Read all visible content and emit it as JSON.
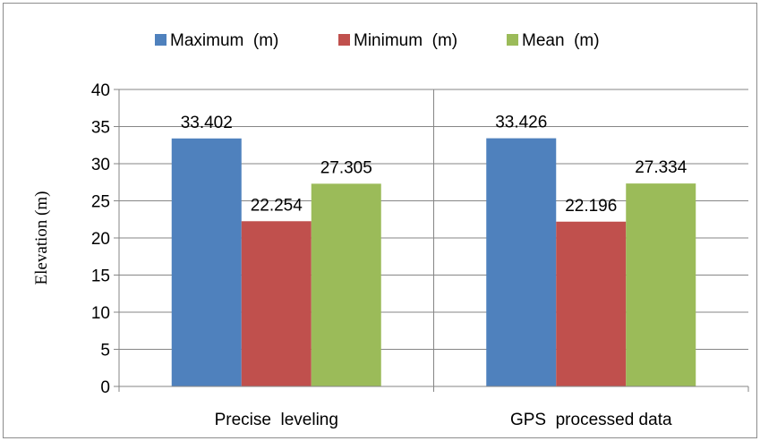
{
  "chart_data": {
    "type": "bar",
    "categories": [
      "Precise  leveling",
      "GPS  processed data"
    ],
    "series": [
      {
        "name": "Maximum  (m)",
        "color": "#4f81bd",
        "values": [
          33.402,
          33.426
        ],
        "labels": [
          "33.402",
          "33.426"
        ]
      },
      {
        "name": "Minimum  (m)",
        "color": "#c0504d",
        "values": [
          22.254,
          22.196
        ],
        "labels": [
          "22.254",
          "22.196"
        ]
      },
      {
        "name": "Mean  (m)",
        "color": "#9bbb59",
        "values": [
          27.305,
          27.334
        ],
        "labels": [
          "27.305",
          "27.334"
        ]
      }
    ],
    "title": "",
    "xlabel": "",
    "ylabel": "Elevation (m)",
    "ylim": [
      0,
      40
    ],
    "yticks": [
      0,
      5,
      10,
      15,
      20,
      25,
      30,
      35,
      40
    ],
    "grid": true,
    "legend_position": "top"
  }
}
